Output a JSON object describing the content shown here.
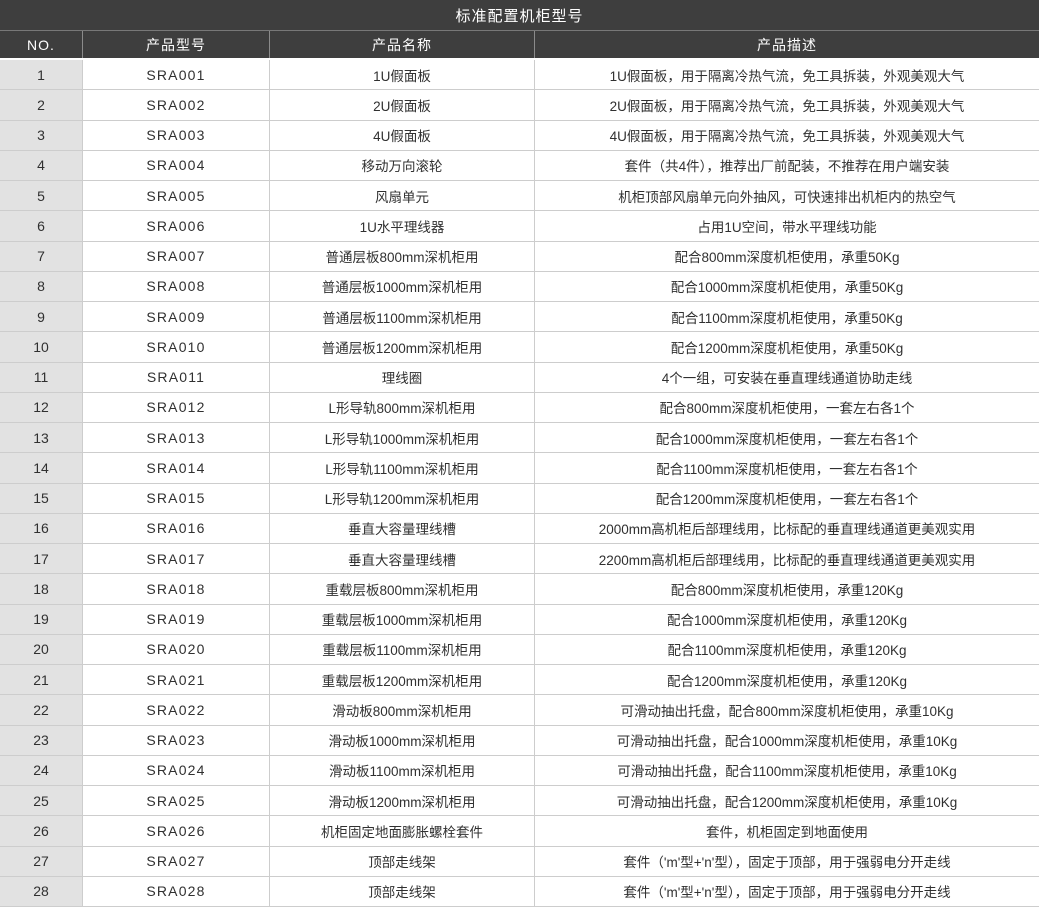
{
  "title": "标准配置机柜型号",
  "columns": [
    "NO.",
    "产品型号",
    "产品名称",
    "产品描述"
  ],
  "rows": [
    {
      "no": "1",
      "model": "SRA001",
      "name": "1U假面板",
      "desc": "1U假面板，用于隔离冷热气流，免工具拆装，外观美观大气"
    },
    {
      "no": "2",
      "model": "SRA002",
      "name": "2U假面板",
      "desc": "2U假面板，用于隔离冷热气流，免工具拆装，外观美观大气"
    },
    {
      "no": "3",
      "model": "SRA003",
      "name": "4U假面板",
      "desc": "4U假面板，用于隔离冷热气流，免工具拆装，外观美观大气"
    },
    {
      "no": "4",
      "model": "SRA004",
      "name": "移动万向滚轮",
      "desc": "套件（共4件），推荐出厂前配装，不推荐在用户端安装"
    },
    {
      "no": "5",
      "model": "SRA005",
      "name": "风扇单元",
      "desc": "机柜顶部风扇单元向外抽风，可快速排出机柜内的热空气"
    },
    {
      "no": "6",
      "model": "SRA006",
      "name": "1U水平理线器",
      "desc": "占用1U空间，带水平理线功能"
    },
    {
      "no": "7",
      "model": "SRA007",
      "name": "普通层板800mm深机柜用",
      "desc": "配合800mm深度机柜使用，承重50Kg"
    },
    {
      "no": "8",
      "model": "SRA008",
      "name": "普通层板1000mm深机柜用",
      "desc": "配合1000mm深度机柜使用，承重50Kg"
    },
    {
      "no": "9",
      "model": "SRA009",
      "name": "普通层板1100mm深机柜用",
      "desc": "配合1100mm深度机柜使用，承重50Kg"
    },
    {
      "no": "10",
      "model": "SRA010",
      "name": "普通层板1200mm深机柜用",
      "desc": "配合1200mm深度机柜使用，承重50Kg"
    },
    {
      "no": "11",
      "model": "SRA011",
      "name": "理线圈",
      "desc": "4个一组，可安装在垂直理线通道协助走线"
    },
    {
      "no": "12",
      "model": "SRA012",
      "name": "L形导轨800mm深机柜用",
      "desc": "配合800mm深度机柜使用，一套左右各1个"
    },
    {
      "no": "13",
      "model": "SRA013",
      "name": "L形导轨1000mm深机柜用",
      "desc": "配合1000mm深度机柜使用，一套左右各1个"
    },
    {
      "no": "14",
      "model": "SRA014",
      "name": "L形导轨1100mm深机柜用",
      "desc": "配合1100mm深度机柜使用，一套左右各1个"
    },
    {
      "no": "15",
      "model": "SRA015",
      "name": "L形导轨1200mm深机柜用",
      "desc": "配合1200mm深度机柜使用，一套左右各1个"
    },
    {
      "no": "16",
      "model": "SRA016",
      "name": "垂直大容量理线槽",
      "desc": "2000mm高机柜后部理线用，比标配的垂直理线通道更美观实用"
    },
    {
      "no": "17",
      "model": "SRA017",
      "name": "垂直大容量理线槽",
      "desc": "2200mm高机柜后部理线用，比标配的垂直理线通道更美观实用"
    },
    {
      "no": "18",
      "model": "SRA018",
      "name": "重载层板800mm深机柜用",
      "desc": "配合800mm深度机柜使用，承重120Kg"
    },
    {
      "no": "19",
      "model": "SRA019",
      "name": "重载层板1000mm深机柜用",
      "desc": "配合1000mm深度机柜使用，承重120Kg"
    },
    {
      "no": "20",
      "model": "SRA020",
      "name": "重载层板1100mm深机柜用",
      "desc": "配合1100mm深度机柜使用，承重120Kg"
    },
    {
      "no": "21",
      "model": "SRA021",
      "name": "重载层板1200mm深机柜用",
      "desc": "配合1200mm深度机柜使用，承重120Kg"
    },
    {
      "no": "22",
      "model": "SRA022",
      "name": "滑动板800mm深机柜用",
      "desc": "可滑动抽出托盘，配合800mm深度机柜使用，承重10Kg"
    },
    {
      "no": "23",
      "model": "SRA023",
      "name": "滑动板1000mm深机柜用",
      "desc": "可滑动抽出托盘，配合1000mm深度机柜使用，承重10Kg"
    },
    {
      "no": "24",
      "model": "SRA024",
      "name": "滑动板1100mm深机柜用",
      "desc": "可滑动抽出托盘，配合1100mm深度机柜使用，承重10Kg"
    },
    {
      "no": "25",
      "model": "SRA025",
      "name": "滑动板1200mm深机柜用",
      "desc": "可滑动抽出托盘，配合1200mm深度机柜使用，承重10Kg"
    },
    {
      "no": "26",
      "model": "SRA026",
      "name": "机柜固定地面膨胀螺栓套件",
      "desc": "套件，机柜固定到地面使用"
    },
    {
      "no": "27",
      "model": "SRA027",
      "name": "顶部走线架",
      "desc": "套件（'m'型+'n'型），固定于顶部，用于强弱电分开走线"
    },
    {
      "no": "28",
      "model": "SRA028",
      "name": "顶部走线架",
      "desc": "套件（'m'型+'n'型），固定于顶部，用于强弱电分开走线"
    }
  ],
  "colors": {
    "header_bg": "#3e3e3e",
    "header_text": "#ffffff",
    "no_col_bg": "#e2e2e2",
    "border": "#cdcdcd",
    "text": "#303030",
    "bg": "#ffffff"
  }
}
